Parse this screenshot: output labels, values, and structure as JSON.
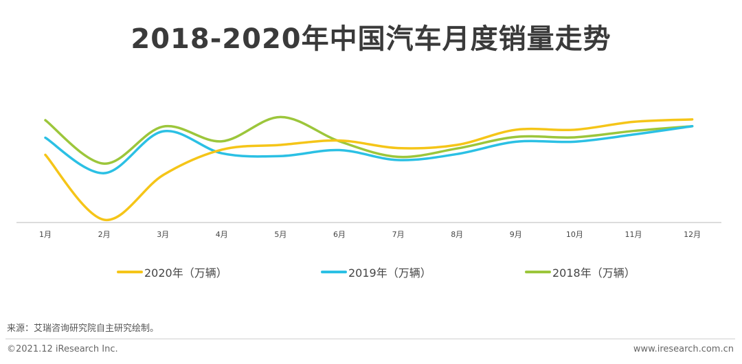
{
  "title": "2018-2020年中国汽车月度销量走势",
  "chart_data": {
    "type": "line",
    "title": "2018-2020年中国汽车月度销量走势",
    "xlabel": "",
    "ylabel": "万辆",
    "ylim": [
      0,
      300
    ],
    "grid": false,
    "legend_position": "bottom",
    "categories": [
      "1月",
      "2月",
      "3月",
      "4月",
      "5月",
      "6月",
      "7月",
      "8月",
      "9月",
      "10月",
      "11月",
      "12月"
    ],
    "series": [
      {
        "name": "2020年（万辆）",
        "color": "#f5c518",
        "values": [
          194,
          31,
          143,
          207,
          219,
          230,
          211,
          219,
          257,
          257,
          277,
          283
        ]
      },
      {
        "name": "2019年（万辆）",
        "color": "#2bc0e4",
        "values": [
          237,
          148,
          253,
          198,
          191,
          206,
          181,
          196,
          227,
          227,
          245,
          266
        ]
      },
      {
        "name": "2018年（万辆）",
        "color": "#9cc63b",
        "values": [
          281,
          172,
          265,
          228,
          289,
          228,
          189,
          210,
          239,
          238,
          254,
          266
        ]
      }
    ]
  },
  "legend": [
    {
      "label": "2020年（万辆）",
      "color": "#f5c518"
    },
    {
      "label": "2019年（万辆）",
      "color": "#2bc0e4"
    },
    {
      "label": "2018年（万辆）",
      "color": "#9cc63b"
    }
  ],
  "source": "来源：艾瑞咨询研究院自主研究绘制。",
  "copyright": "©2021.12 iResearch Inc.",
  "website": "www.iresearch.com.cn"
}
